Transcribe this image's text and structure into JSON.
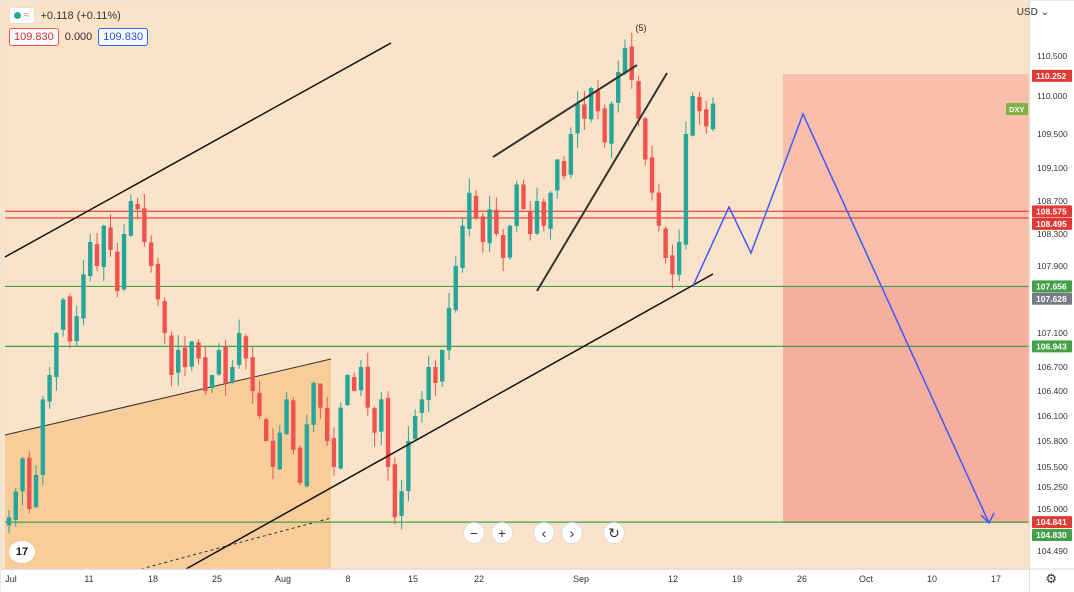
{
  "legend": {
    "change": "+0.118 (+0.11%)",
    "sell_price": "109.830",
    "spread": "0.000",
    "buy_price": "109.830"
  },
  "currency_label": "USD",
  "currency_caret": "⌄",
  "symbol_tag": "DXY",
  "wave_label": "(5)",
  "toolbar": {
    "zoom_out": "−",
    "zoom_in": "+",
    "scroll_left": "‹",
    "scroll_right": "›",
    "reset": "↻"
  },
  "logo_text": "17",
  "colors": {
    "background": "#fbe3c9",
    "up_candle": "#26a69a",
    "down_candle": "#ef5350",
    "red_line": "#e53935",
    "green_line": "#43a047",
    "projection": "#3d5afe",
    "zone_top": "#f8b9a4",
    "zone_bottom": "#f7a597",
    "triangle": "#f7c990"
  },
  "chart_data": {
    "type": "candlestick",
    "title": "",
    "xlabel": "",
    "ylabel": "",
    "y_axis_ticks": [
      "110.500",
      "110.000",
      "109.500",
      "109.100",
      "108.700",
      "108.300",
      "107.900",
      "107.100",
      "106.700",
      "106.400",
      "106.100",
      "105.800",
      "105.500",
      "105.250",
      "105.000",
      "104.490"
    ],
    "x_axis_ticks": [
      "Jul",
      "11",
      "18",
      "25",
      "Aug",
      "8",
      "15",
      "22",
      "Sep",
      "12",
      "19",
      "26",
      "Oct",
      "10",
      "17"
    ],
    "price_labels": [
      {
        "value": "110.252",
        "color": "#e53935"
      },
      {
        "value": "108.575",
        "color": "#e53935"
      },
      {
        "value": "108.495",
        "color": "#e53935"
      },
      {
        "value": "107.656",
        "color": "#43a047"
      },
      {
        "value": "107.628",
        "color": "#787b86"
      },
      {
        "value": "106.943",
        "color": "#43a047"
      },
      {
        "value": "104.841",
        "color": "#e53935"
      },
      {
        "value": "104.830",
        "color": "#43a047"
      }
    ],
    "horizontal_levels": [
      {
        "value": 108.575,
        "color": "#e53935"
      },
      {
        "value": 108.495,
        "color": "#e53935"
      },
      {
        "value": 107.656,
        "color": "#43a047"
      },
      {
        "value": 106.943,
        "color": "#43a047"
      },
      {
        "value": 104.841,
        "color": "#43a047"
      }
    ],
    "close_path": [
      104.9,
      105.2,
      105.6,
      105.0,
      105.4,
      106.3,
      106.6,
      107.1,
      107.5,
      107.0,
      107.3,
      107.8,
      108.2,
      107.9,
      108.4,
      108.1,
      107.6,
      108.3,
      108.7,
      108.6,
      108.2,
      107.9,
      107.5,
      107.1,
      106.6,
      106.9,
      106.7,
      107.0,
      106.8,
      106.4,
      106.6,
      106.9,
      106.5,
      106.7,
      107.1,
      106.8,
      106.4,
      106.1,
      105.8,
      105.5,
      105.9,
      106.3,
      105.7,
      105.3,
      106.0,
      106.5,
      106.2,
      105.8,
      105.5,
      106.2,
      106.6,
      106.4,
      106.7,
      106.2,
      105.9,
      106.3,
      105.5,
      104.9,
      105.2,
      105.8,
      106.1,
      106.3,
      106.7,
      106.5,
      106.9,
      107.4,
      107.9,
      108.4,
      108.8,
      108.5,
      108.2,
      108.6,
      108.3,
      108.0,
      108.4,
      108.9,
      108.6,
      108.3,
      108.7,
      108.4,
      108.8,
      109.2,
      109.0,
      109.5,
      109.9,
      109.7,
      110.1,
      109.8,
      109.4,
      109.9,
      110.3,
      110.6,
      110.2,
      109.7,
      109.2,
      108.8,
      108.4,
      108.0,
      107.8,
      108.2,
      109.5,
      110.0,
      109.8,
      109.6,
      109.9
    ],
    "y_range": [
      104.3,
      110.9
    ]
  }
}
